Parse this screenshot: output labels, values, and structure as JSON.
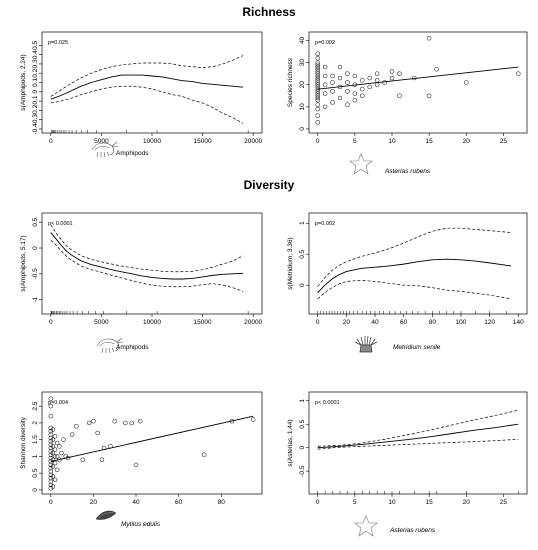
{
  "sections": {
    "richness": "Richness",
    "diversity": "Diversity"
  },
  "chart_data": [
    {
      "id": "p1",
      "type": "line",
      "xlabel": "Amphipods",
      "ylabel": "s(Amphipods, 2.24)",
      "annotation": "p=0.025",
      "xlim": [
        0,
        20000
      ],
      "ylim": [
        -0.4,
        0.6
      ],
      "xticks": [
        0,
        5000,
        10000,
        15000,
        20000
      ],
      "yticks": [
        -0.4,
        -0.3,
        -0.2,
        -0.1,
        0.0,
        0.1,
        0.2,
        0.3,
        0.4,
        0.5
      ],
      "icon": "amphipod-icon",
      "fit": {
        "x": [
          0,
          1000,
          2000,
          3000,
          4000,
          5000,
          6000,
          7000,
          8000,
          9000,
          10000,
          11000,
          12000,
          13000,
          14000,
          15000,
          16000,
          17000,
          18000,
          19000
        ],
        "y": [
          -0.08,
          -0.04,
          0.01,
          0.06,
          0.1,
          0.13,
          0.16,
          0.18,
          0.18,
          0.18,
          0.17,
          0.16,
          0.14,
          0.12,
          0.11,
          0.09,
          0.08,
          0.07,
          0.06,
          0.05
        ]
      },
      "upper": {
        "x": [
          0,
          1000,
          2000,
          3000,
          4000,
          5000,
          6000,
          7000,
          8000,
          9000,
          10000,
          11000,
          12000,
          13000,
          14000,
          15000,
          16000,
          17000,
          18000,
          19000
        ],
        "y": [
          -0.05,
          0.02,
          0.09,
          0.15,
          0.2,
          0.24,
          0.27,
          0.29,
          0.3,
          0.31,
          0.31,
          0.31,
          0.3,
          0.28,
          0.27,
          0.26,
          0.27,
          0.3,
          0.34,
          0.39
        ]
      },
      "lower": {
        "x": [
          0,
          1000,
          2000,
          3000,
          4000,
          5000,
          6000,
          7000,
          8000,
          9000,
          10000,
          11000,
          12000,
          13000,
          14000,
          15000,
          16000,
          17000,
          18000,
          19000
        ],
        "y": [
          -0.12,
          -0.1,
          -0.07,
          -0.03,
          0.0,
          0.03,
          0.05,
          0.06,
          0.06,
          0.05,
          0.03,
          0.0,
          -0.03,
          -0.05,
          -0.09,
          -0.12,
          -0.17,
          -0.23,
          -0.28,
          -0.34
        ]
      },
      "rug": [
        50,
        150,
        250,
        350,
        500,
        700,
        900,
        1100,
        1300,
        1500,
        1800,
        2100,
        2500,
        3000,
        3600,
        4500,
        7500,
        10500,
        19500
      ]
    },
    {
      "id": "p2",
      "type": "scatter",
      "xlabel": "Asterias rubens",
      "xlabel_italic": true,
      "ylabel": "Species richness",
      "annotation": "p=0.002",
      "xlim": [
        0,
        27
      ],
      "ylim": [
        0,
        42
      ],
      "xticks": [
        0,
        5,
        10,
        15,
        20,
        25
      ],
      "yticks": [
        0,
        10,
        20,
        30,
        40
      ],
      "icon": "starfish-icon",
      "points": {
        "x": [
          0,
          0,
          0,
          0,
          0,
          0,
          0,
          0,
          0,
          0,
          0,
          0,
          0,
          0,
          0,
          0,
          0,
          0,
          0,
          0,
          0,
          0,
          0,
          0,
          1,
          1,
          1,
          1,
          1,
          2,
          2,
          2,
          2,
          3,
          3,
          3,
          3,
          4,
          4,
          4,
          4,
          5,
          5,
          5,
          5,
          6,
          6,
          6,
          7,
          7,
          8,
          8,
          8,
          9,
          10,
          10,
          11,
          11,
          13,
          15,
          15,
          16,
          20,
          27
        ],
        "y": [
          3,
          6,
          9,
          11,
          13,
          14,
          15,
          16,
          17,
          18,
          19,
          20,
          21,
          22,
          23,
          24,
          25,
          26,
          27,
          28,
          29,
          30,
          32,
          34,
          10,
          16,
          20,
          24,
          28,
          12,
          17,
          21,
          24,
          14,
          19,
          23,
          28,
          11,
          17,
          21,
          25,
          13,
          16,
          20,
          24,
          15,
          18,
          22,
          19,
          23,
          20,
          22,
          25,
          21,
          23,
          26,
          15,
          25,
          23,
          41,
          15,
          27,
          21,
          25
        ]
      },
      "fit": {
        "x": [
          0,
          27
        ],
        "y": [
          18,
          28
        ]
      }
    },
    {
      "id": "p3",
      "type": "line",
      "xlabel": "Amphipods",
      "ylabel": "s(Amphipods, 5.17)",
      "annotation": "p< 0.0001",
      "xlim": [
        0,
        20000
      ],
      "ylim": [
        -1.2,
        0.6
      ],
      "xticks": [
        0,
        5000,
        10000,
        15000,
        20000
      ],
      "yticks": [
        -1.0,
        -0.5,
        0.0,
        0.5
      ],
      "icon": "amphipod-icon",
      "fit": {
        "x": [
          0,
          500,
          1000,
          1500,
          2000,
          3000,
          4000,
          5000,
          6000,
          7000,
          8000,
          9000,
          10000,
          11000,
          12000,
          13000,
          14000,
          15000,
          16000,
          17000,
          18000,
          19000
        ],
        "y": [
          0.3,
          0.18,
          0.06,
          -0.05,
          -0.13,
          -0.25,
          -0.32,
          -0.37,
          -0.42,
          -0.46,
          -0.5,
          -0.54,
          -0.57,
          -0.59,
          -0.6,
          -0.6,
          -0.59,
          -0.56,
          -0.53,
          -0.51,
          -0.5,
          -0.49
        ]
      },
      "upper": {
        "x": [
          0,
          500,
          1000,
          1500,
          2000,
          3000,
          4000,
          5000,
          6000,
          7000,
          8000,
          9000,
          10000,
          11000,
          12000,
          13000,
          14000,
          15000,
          16000,
          17000,
          18000,
          19000
        ],
        "y": [
          0.45,
          0.3,
          0.17,
          0.05,
          -0.03,
          -0.15,
          -0.22,
          -0.27,
          -0.31,
          -0.35,
          -0.38,
          -0.41,
          -0.43,
          -0.45,
          -0.46,
          -0.46,
          -0.45,
          -0.42,
          -0.37,
          -0.31,
          -0.25,
          -0.15
        ]
      },
      "lower": {
        "x": [
          0,
          500,
          1000,
          1500,
          2000,
          3000,
          4000,
          5000,
          6000,
          7000,
          8000,
          9000,
          10000,
          11000,
          12000,
          13000,
          14000,
          15000,
          16000,
          17000,
          18000,
          19000
        ],
        "y": [
          0.15,
          0.06,
          -0.05,
          -0.15,
          -0.23,
          -0.35,
          -0.42,
          -0.47,
          -0.53,
          -0.58,
          -0.63,
          -0.68,
          -0.72,
          -0.74,
          -0.75,
          -0.75,
          -0.74,
          -0.71,
          -0.69,
          -0.72,
          -0.77,
          -0.84
        ]
      },
      "rug": [
        30,
        100,
        200,
        300,
        400,
        550,
        700,
        850,
        1000,
        1200,
        1400,
        1600,
        1900,
        2200,
        2600,
        3100,
        3700,
        4400,
        5200,
        7500,
        10500,
        19500
      ]
    },
    {
      "id": "p4",
      "type": "line",
      "xlabel": "Metridium senile",
      "xlabel_italic": true,
      "ylabel": "s(Metridium, 3.36)",
      "annotation": "p=0.002",
      "xlim": [
        0,
        140
      ],
      "ylim": [
        -0.4,
        1.1
      ],
      "xticks": [
        0,
        20,
        40,
        60,
        80,
        100,
        120,
        140
      ],
      "yticks": [
        -0.5,
        0.0,
        0.5,
        1.0
      ],
      "icon": "anemone-icon",
      "fit": {
        "x": [
          0,
          5,
          10,
          15,
          20,
          30,
          40,
          50,
          60,
          70,
          80,
          90,
          100,
          110,
          120,
          135
        ],
        "y": [
          -0.12,
          0.0,
          0.1,
          0.17,
          0.22,
          0.27,
          0.29,
          0.31,
          0.34,
          0.38,
          0.41,
          0.42,
          0.41,
          0.39,
          0.36,
          0.31
        ]
      },
      "upper": {
        "x": [
          0,
          5,
          10,
          15,
          20,
          30,
          40,
          50,
          60,
          70,
          80,
          90,
          100,
          110,
          120,
          135
        ],
        "y": [
          -0.02,
          0.12,
          0.24,
          0.32,
          0.38,
          0.46,
          0.52,
          0.59,
          0.68,
          0.78,
          0.87,
          0.92,
          0.92,
          0.9,
          0.88,
          0.85
        ]
      },
      "lower": {
        "x": [
          0,
          5,
          10,
          15,
          20,
          30,
          40,
          50,
          60,
          70,
          80,
          90,
          100,
          110,
          120,
          135
        ],
        "y": [
          -0.22,
          -0.12,
          -0.04,
          0.02,
          0.06,
          0.08,
          0.06,
          0.03,
          0.0,
          -0.01,
          -0.04,
          -0.08,
          -0.1,
          -0.13,
          -0.16,
          -0.22
        ]
      },
      "rug": [
        0,
        2,
        4,
        6,
        8,
        10,
        12,
        14,
        16,
        18,
        20,
        22,
        25,
        28,
        31,
        34,
        37,
        40,
        43,
        46,
        50,
        54,
        58,
        62,
        66,
        70,
        75,
        80,
        85,
        90,
        95,
        100,
        110,
        120,
        132
      ]
    },
    {
      "id": "p5",
      "type": "scatter",
      "xlabel": "Mytilus edulis",
      "xlabel_italic": true,
      "ylabel": "Shannon diversity",
      "annotation": "p=0.004",
      "xlim": [
        0,
        95
      ],
      "ylim": [
        0,
        2.8
      ],
      "xticks": [
        0,
        20,
        40,
        60,
        80
      ],
      "yticks": [
        0.0,
        0.5,
        1.0,
        1.5,
        2.0,
        2.5
      ],
      "icon": "mussel-icon",
      "points": {
        "x": [
          0,
          0,
          0,
          0,
          0,
          0,
          0,
          0,
          0,
          0,
          0,
          0,
          0,
          0,
          0,
          0,
          0,
          0,
          0,
          0,
          0,
          0,
          1,
          1,
          1,
          1,
          1,
          1,
          1,
          1,
          2,
          2,
          2,
          2,
          2,
          3,
          3,
          3,
          4,
          4,
          5,
          6,
          7,
          8,
          10,
          12,
          15,
          18,
          20,
          22,
          24,
          25,
          28,
          30,
          35,
          38,
          40,
          42,
          72,
          85,
          95
        ],
        "y": [
          0.05,
          0.15,
          0.25,
          0.35,
          0.45,
          0.55,
          0.65,
          0.75,
          0.85,
          0.95,
          1.05,
          1.15,
          1.25,
          1.35,
          1.45,
          1.55,
          1.65,
          1.75,
          1.85,
          2.2,
          2.5,
          2.72,
          0.1,
          0.4,
          0.7,
          0.9,
          1.1,
          1.3,
          1.5,
          1.8,
          0.3,
          0.8,
          1.0,
          1.2,
          1.6,
          0.6,
          1.0,
          1.4,
          0.9,
          1.3,
          1.1,
          1.5,
          1.0,
          0.95,
          1.65,
          1.9,
          0.9,
          2.0,
          2.05,
          1.7,
          0.9,
          1.25,
          1.3,
          2.05,
          2.0,
          2.0,
          0.75,
          2.05,
          1.05,
          2.05,
          2.1
        ]
      },
      "fit": {
        "x": [
          0,
          95
        ],
        "y": [
          0.85,
          2.2
        ]
      }
    },
    {
      "id": "p6",
      "type": "line",
      "xlabel": "Asterias rubens",
      "xlabel_italic": true,
      "ylabel": "s(Asterias, 1.44)",
      "annotation": "p< 0.0001",
      "xlim": [
        0,
        27
      ],
      "ylim": [
        -0.9,
        1.1
      ],
      "xticks": [
        0,
        5,
        10,
        15,
        20,
        25
      ],
      "yticks": [
        -0.5,
        0.0,
        0.5,
        1.0
      ],
      "icon": "starfish-icon",
      "fit": {
        "x": [
          0,
          3,
          6,
          9,
          12,
          15,
          18,
          21,
          24,
          27
        ],
        "y": [
          0.0,
          0.03,
          0.07,
          0.12,
          0.17,
          0.23,
          0.3,
          0.37,
          0.43,
          0.5
        ]
      },
      "upper": {
        "x": [
          0,
          3,
          6,
          9,
          12,
          15,
          18,
          21,
          24,
          27
        ],
        "y": [
          0.03,
          0.05,
          0.1,
          0.18,
          0.27,
          0.37,
          0.48,
          0.59,
          0.69,
          0.8
        ]
      },
      "lower": {
        "x": [
          0,
          3,
          6,
          9,
          12,
          15,
          18,
          21,
          24,
          27
        ],
        "y": [
          -0.03,
          0.01,
          0.03,
          0.05,
          0.07,
          0.09,
          0.11,
          0.13,
          0.15,
          0.18
        ]
      },
      "rug": [
        0,
        1,
        2,
        3,
        4,
        5,
        6,
        7,
        8,
        9,
        10,
        11,
        13,
        15,
        16,
        20,
        27
      ]
    }
  ]
}
